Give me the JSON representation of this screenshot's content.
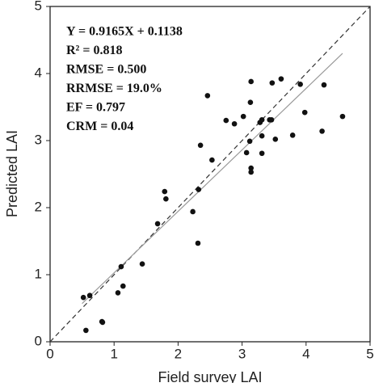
{
  "chart_data": {
    "type": "scatter",
    "xlabel": "Field survey LAI",
    "ylabel": "Predicted LAI",
    "xlim": [
      0,
      5
    ],
    "ylim": [
      0,
      5
    ],
    "xticks": [
      0,
      1,
      2,
      3,
      4,
      5
    ],
    "yticks": [
      0,
      1,
      2,
      3,
      4,
      5
    ],
    "color": "#111",
    "x": [
      0.52,
      0.62,
      0.56,
      0.81,
      0.82,
      1.06,
      1.11,
      1.14,
      1.44,
      1.68,
      1.79,
      1.81,
      2.23,
      2.31,
      2.32,
      2.35,
      2.46,
      2.53,
      2.75,
      2.88,
      3.02,
      3.07,
      3.12,
      3.13,
      3.14,
      3.14,
      3.14,
      3.28,
      3.31,
      3.31,
      3.31,
      3.43,
      3.46,
      3.47,
      3.52,
      3.61,
      3.79,
      3.91,
      3.98,
      4.28,
      4.25,
      4.57
    ],
    "y": [
      0.66,
      0.69,
      0.17,
      0.3,
      0.29,
      0.73,
      1.12,
      0.83,
      1.16,
      1.76,
      2.24,
      2.13,
      1.94,
      1.47,
      2.27,
      2.93,
      3.67,
      2.71,
      3.3,
      3.25,
      3.36,
      2.82,
      2.99,
      3.57,
      3.88,
      2.59,
      2.53,
      3.27,
      3.31,
      3.07,
      2.81,
      3.31,
      3.31,
      3.86,
      3.02,
      3.92,
      3.08,
      3.84,
      3.42,
      3.83,
      3.14,
      3.36
    ],
    "lines": [
      {
        "x": [
          0,
          5
        ],
        "y": [
          0,
          5
        ],
        "color": "#333",
        "dash": true
      },
      {
        "x": [
          0.5,
          4.57
        ],
        "y": [
          0.57,
          4.3
        ],
        "color": "#999",
        "dash": false
      }
    ],
    "annotations": [
      "Y = 0.9165X + 0.1138",
      "R² = 0.818",
      "RMSE = 0.500",
      "RRMSE = 19.0%",
      "EF = 0.797",
      "CRM = 0.04"
    ]
  }
}
